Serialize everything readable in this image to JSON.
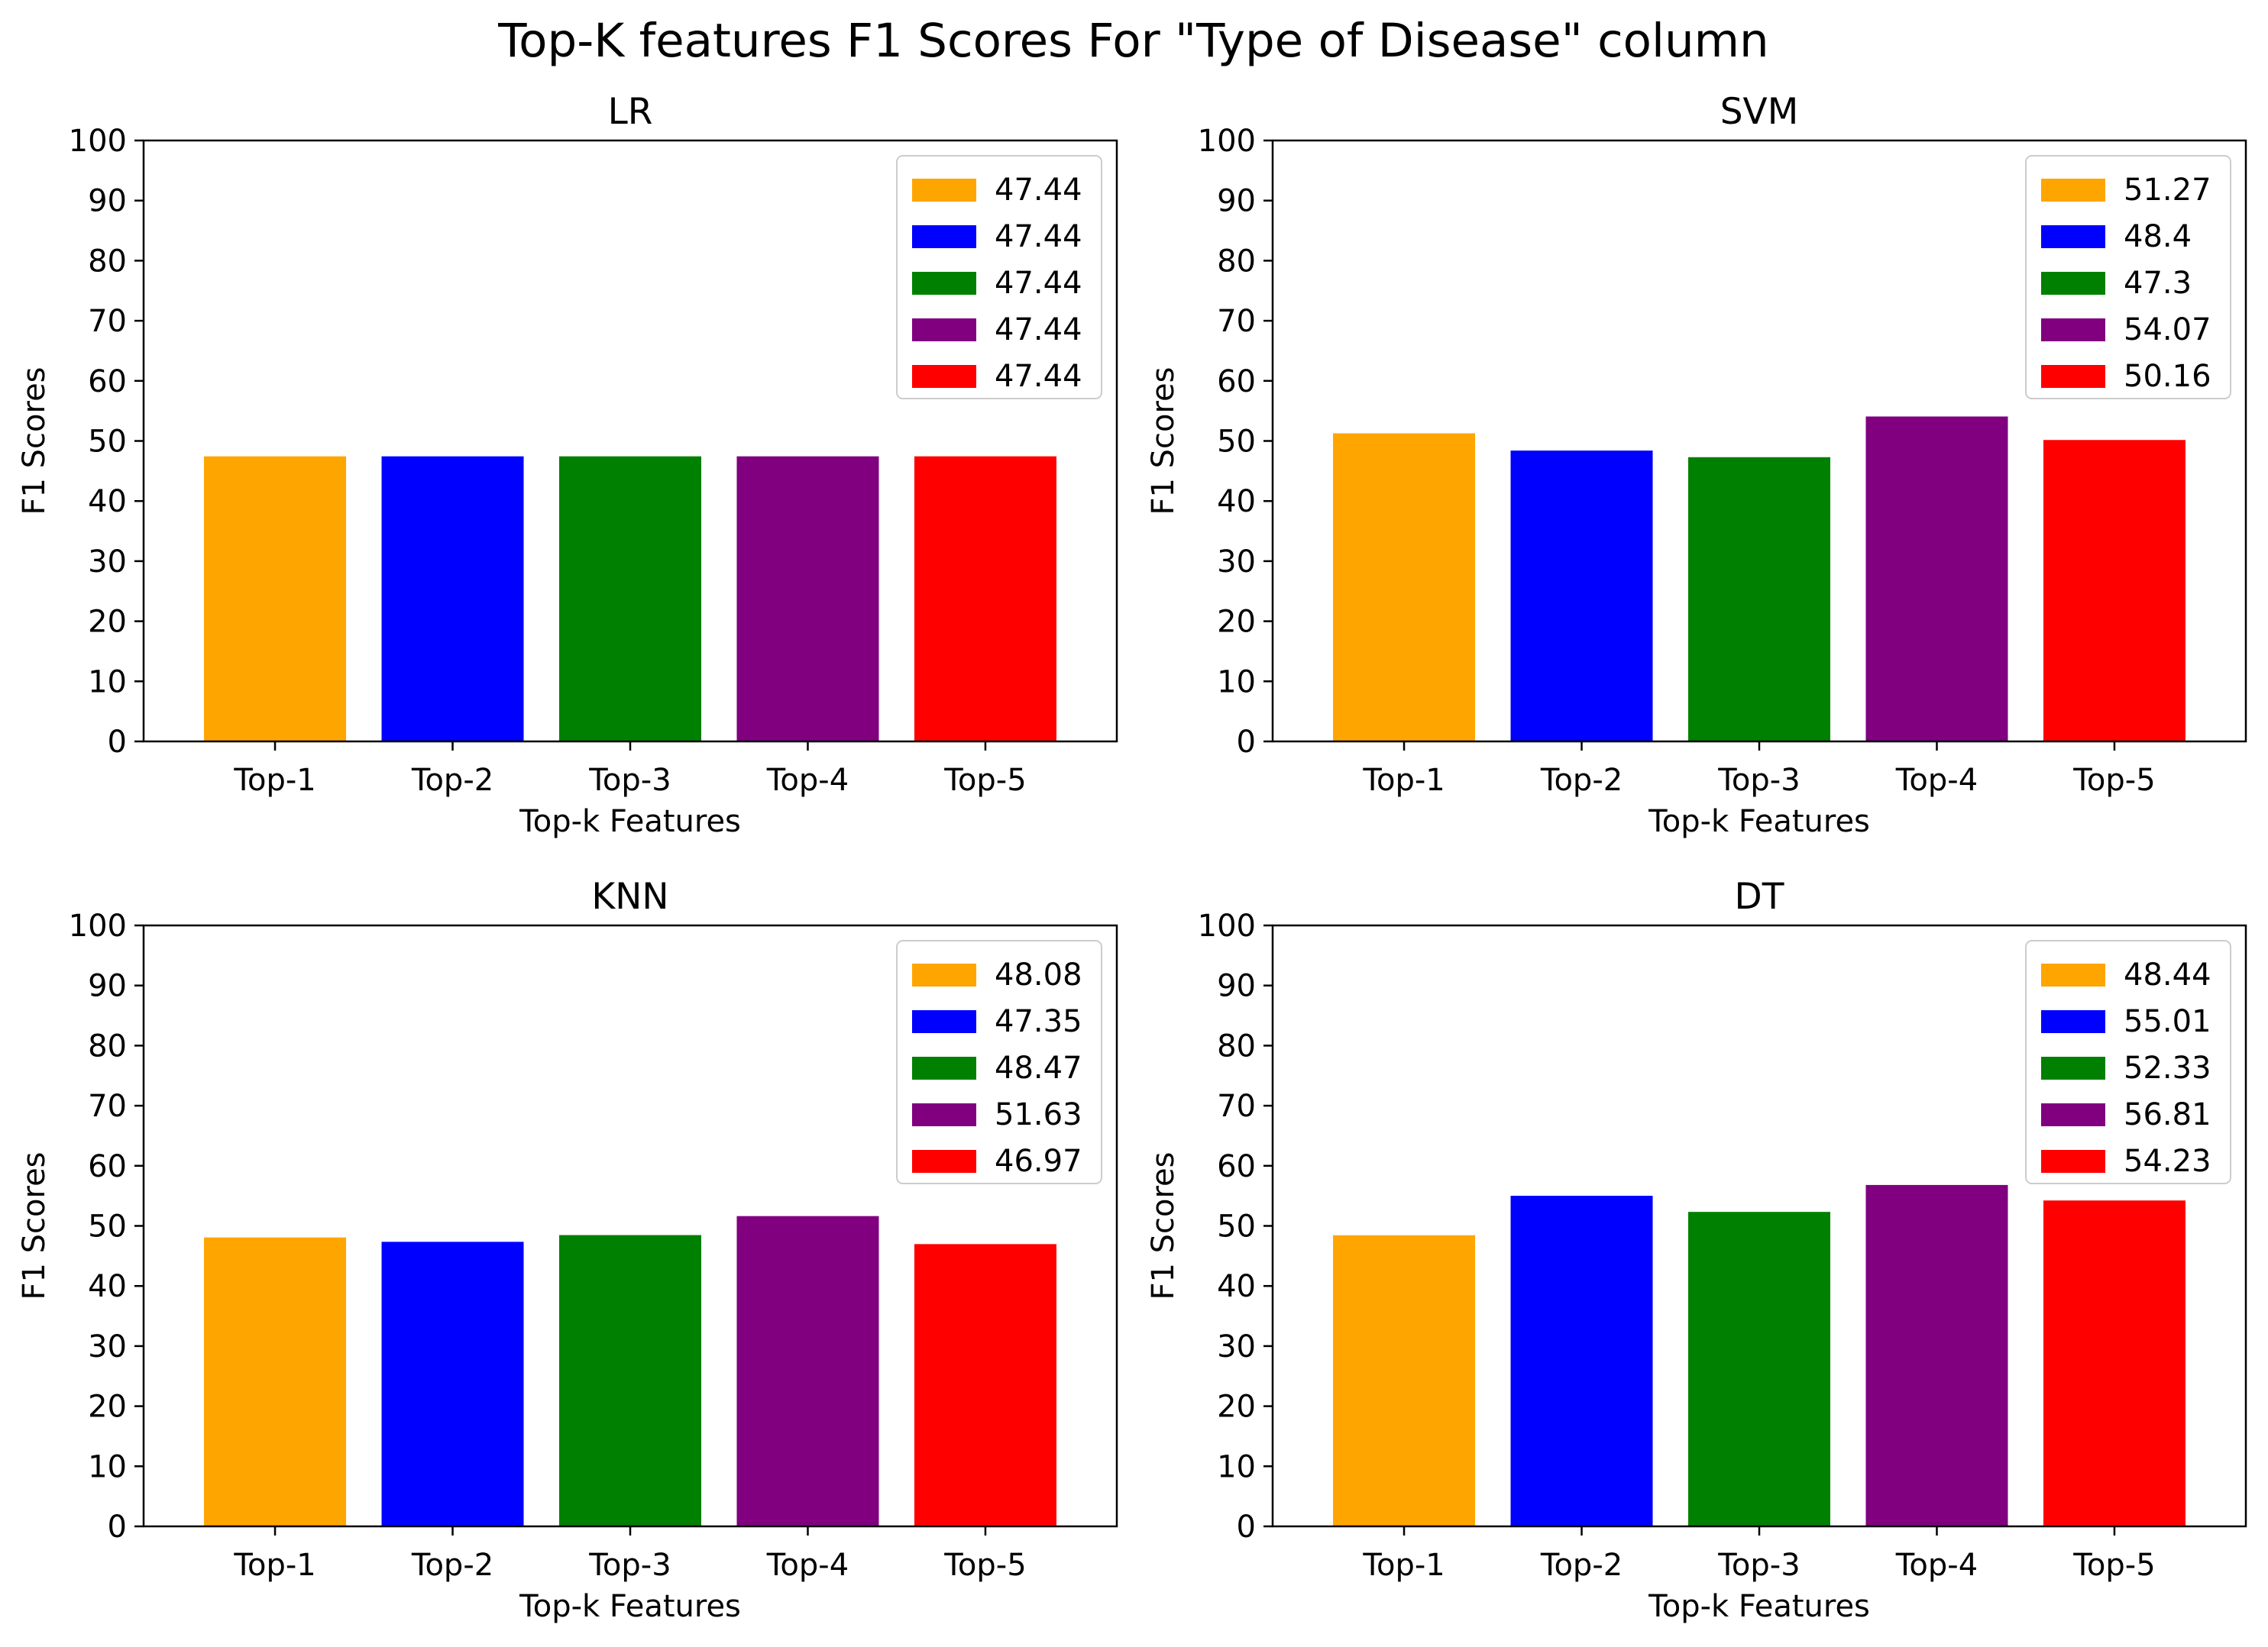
{
  "figure": {
    "title": "Top-K features F1 Scores For \"Type of Disease\" column"
  },
  "chart_data": [
    {
      "type": "bar",
      "title": "LR",
      "xlabel": "Top-k Features",
      "ylabel": "F1 Scores",
      "categories": [
        "Top-1",
        "Top-2",
        "Top-3",
        "Top-4",
        "Top-5"
      ],
      "values": [
        47.44,
        47.44,
        47.44,
        47.44,
        47.44
      ],
      "colors": [
        "#ffa500",
        "#0000ff",
        "#008000",
        "#800080",
        "#ff0000"
      ],
      "legend": [
        "47.44",
        "47.44",
        "47.44",
        "47.44",
        "47.44"
      ],
      "legend_position": "top-right",
      "ylim": [
        0,
        100
      ],
      "yticks": [
        0,
        10,
        20,
        30,
        40,
        50,
        60,
        70,
        80,
        90,
        100
      ],
      "grid": false
    },
    {
      "type": "bar",
      "title": "SVM",
      "xlabel": "Top-k Features",
      "ylabel": "F1 Scores",
      "categories": [
        "Top-1",
        "Top-2",
        "Top-3",
        "Top-4",
        "Top-5"
      ],
      "values": [
        51.27,
        48.4,
        47.3,
        54.07,
        50.16
      ],
      "colors": [
        "#ffa500",
        "#0000ff",
        "#008000",
        "#800080",
        "#ff0000"
      ],
      "legend": [
        "51.27",
        "48.4",
        "47.3",
        "54.07",
        "50.16"
      ],
      "legend_position": "top-right",
      "ylim": [
        0,
        100
      ],
      "yticks": [
        0,
        10,
        20,
        30,
        40,
        50,
        60,
        70,
        80,
        90,
        100
      ],
      "grid": false
    },
    {
      "type": "bar",
      "title": "KNN",
      "xlabel": "Top-k Features",
      "ylabel": "F1 Scores",
      "categories": [
        "Top-1",
        "Top-2",
        "Top-3",
        "Top-4",
        "Top-5"
      ],
      "values": [
        48.08,
        47.35,
        48.47,
        51.63,
        46.97
      ],
      "colors": [
        "#ffa500",
        "#0000ff",
        "#008000",
        "#800080",
        "#ff0000"
      ],
      "legend": [
        "48.08",
        "47.35",
        "48.47",
        "51.63",
        "46.97"
      ],
      "legend_position": "top-right",
      "ylim": [
        0,
        100
      ],
      "yticks": [
        0,
        10,
        20,
        30,
        40,
        50,
        60,
        70,
        80,
        90,
        100
      ],
      "grid": false
    },
    {
      "type": "bar",
      "title": "DT",
      "xlabel": "Top-k Features",
      "ylabel": "F1 Scores",
      "categories": [
        "Top-1",
        "Top-2",
        "Top-3",
        "Top-4",
        "Top-5"
      ],
      "values": [
        48.44,
        55.01,
        52.33,
        56.81,
        54.23
      ],
      "colors": [
        "#ffa500",
        "#0000ff",
        "#008000",
        "#800080",
        "#ff0000"
      ],
      "legend": [
        "48.44",
        "55.01",
        "52.33",
        "56.81",
        "54.23"
      ],
      "legend_position": "top-right",
      "ylim": [
        0,
        100
      ],
      "yticks": [
        0,
        10,
        20,
        30,
        40,
        50,
        60,
        70,
        80,
        90,
        100
      ],
      "grid": false
    }
  ]
}
